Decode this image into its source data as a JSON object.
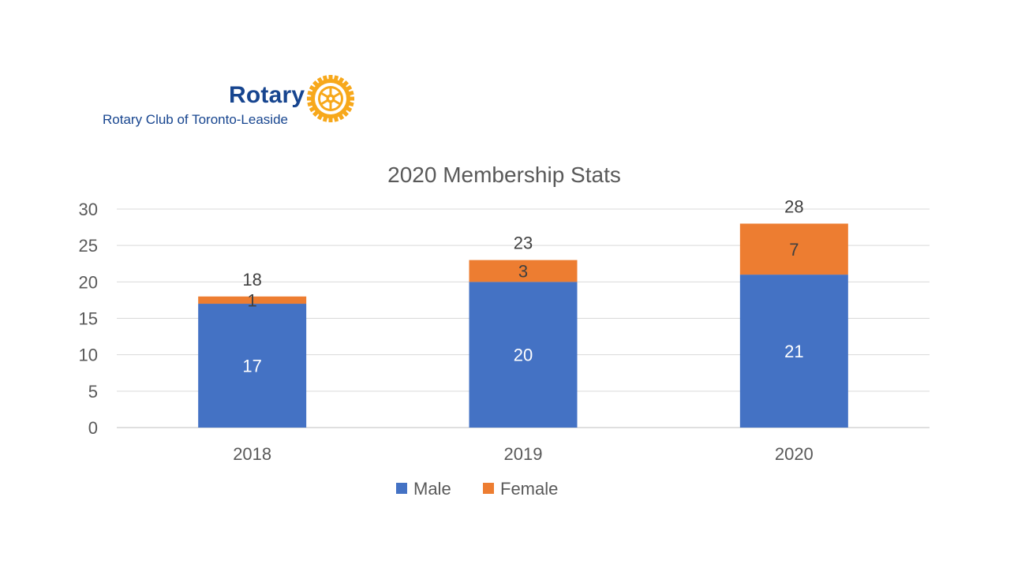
{
  "logo": {
    "wordmark": "Rotary",
    "club_name": "Rotary Club of Toronto-Leaside",
    "icon": "rotary-wheel-icon",
    "colors": {
      "blue": "#17458f",
      "gold": "#f7a81b"
    }
  },
  "chart_data": {
    "type": "bar",
    "stacked": true,
    "title": "2020 Membership Stats",
    "xlabel": "",
    "ylabel": "",
    "categories": [
      "2018",
      "2019",
      "2020"
    ],
    "series": [
      {
        "name": "Male",
        "values": [
          17,
          20,
          21
        ],
        "color": "#4472c4",
        "label_color": "#ffffff"
      },
      {
        "name": "Female",
        "values": [
          1,
          3,
          7
        ],
        "color": "#ed7d31",
        "label_color": "#404040"
      }
    ],
    "totals": [
      18,
      23,
      28
    ],
    "ylim": [
      0,
      30
    ],
    "yticks": [
      0,
      5,
      10,
      15,
      20,
      25,
      30
    ],
    "grid": true,
    "legend_position": "bottom"
  }
}
